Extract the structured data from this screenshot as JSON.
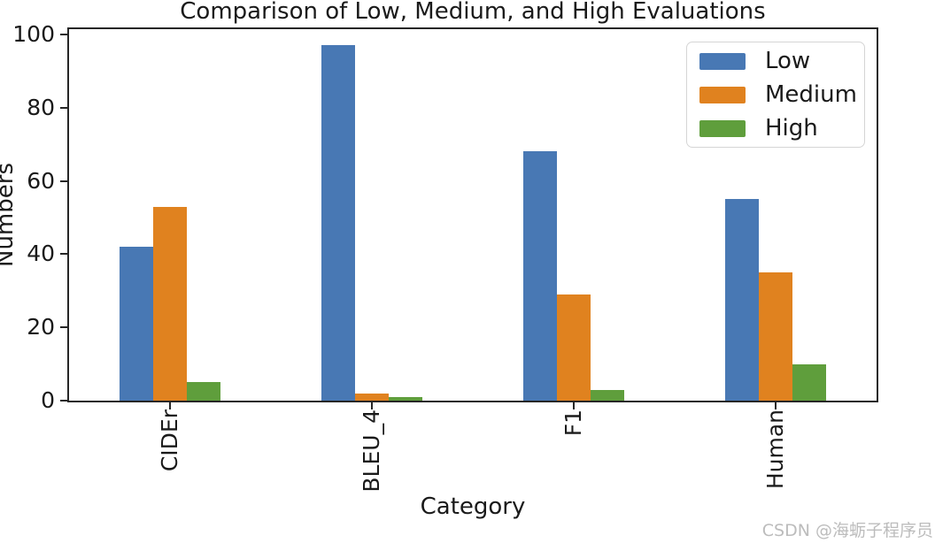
{
  "figure": {
    "title": "Comparison of Low, Medium, and High Evaluations",
    "xlabel": "Category",
    "ylabel": "Numbers",
    "watermark": "CSDN @海蛎子程序员"
  },
  "chart_data": {
    "type": "bar",
    "title": "Comparison of Low, Medium, and High Evaluations",
    "xlabel": "Category",
    "ylabel": "Numbers",
    "categories": [
      "CIDEr",
      "BLEU_4",
      "F1",
      "Human"
    ],
    "series": [
      {
        "name": "Low",
        "color": "#4878B4",
        "values": [
          42,
          97,
          68,
          55
        ]
      },
      {
        "name": "Medium",
        "color": "#E0821F",
        "values": [
          53,
          2,
          29,
          35
        ]
      },
      {
        "name": "High",
        "color": "#5F9E3C",
        "values": [
          5,
          1,
          3,
          10
        ]
      }
    ],
    "ylim": [
      0,
      100
    ],
    "yticks": [
      0,
      20,
      40,
      60,
      80,
      100
    ],
    "grid": false,
    "legend_position": "upper right",
    "xtick_rotation": 90
  },
  "colors": {
    "spine": "#262626",
    "background": "#FFFFFF",
    "legend_border": "#D5D5D5",
    "watermark_text": "#BCBCBC"
  }
}
